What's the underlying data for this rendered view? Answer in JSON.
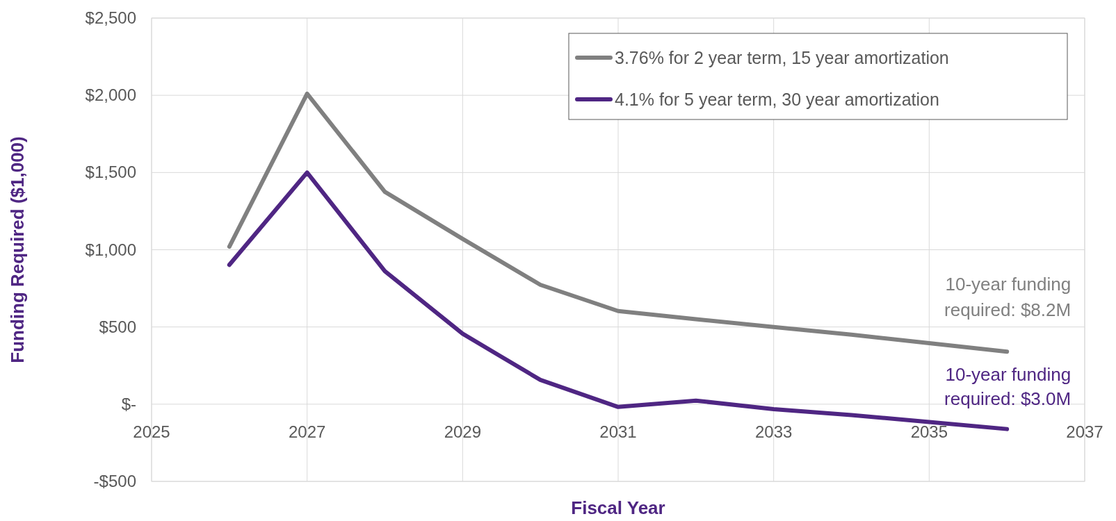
{
  "chart_data": {
    "type": "line",
    "xlabel": "Fiscal Year",
    "ylabel": "Funding Required ($1,000)",
    "x": [
      2026,
      2027,
      2028,
      2029,
      2030,
      2031,
      2032,
      2033,
      2034,
      2035,
      2036
    ],
    "series": [
      {
        "name": "3.76% for 2 year term, 15 year amortization",
        "color": "#808080",
        "values": [
          1020,
          2010,
          1375,
          1070,
          773,
          603,
          550,
          500,
          450,
          395,
          340
        ]
      },
      {
        "name": "4.1% for 5 year term, 30 year amortization",
        "color": "#4f2683",
        "values": [
          902,
          1500,
          861,
          456,
          157,
          -18,
          23,
          -32,
          -70,
          -115,
          -161
        ]
      }
    ],
    "xlim": [
      2025,
      2037
    ],
    "xticks": [
      2025,
      2027,
      2029,
      2031,
      2033,
      2035,
      2037
    ],
    "ylim": [
      -500,
      2500
    ],
    "yticks": [
      {
        "value": -500,
        "label": "-$500"
      },
      {
        "value": 0,
        "label": "$-"
      },
      {
        "value": 500,
        "label": "$500"
      },
      {
        "value": 1000,
        "label": "$1,000"
      },
      {
        "value": 1500,
        "label": "$1,500"
      },
      {
        "value": 2000,
        "label": "$2,000"
      },
      {
        "value": 2500,
        "label": "$2,500"
      }
    ],
    "grid": true,
    "legend": "top right",
    "marker": "none",
    "line_style": "solid",
    "annotations": [
      {
        "text": "10-year funding required: $8.2M",
        "x": 2036,
        "y": 340
      },
      {
        "text": "10-year funding required: $3.0M",
        "x": 2036,
        "y": -161
      }
    ]
  }
}
